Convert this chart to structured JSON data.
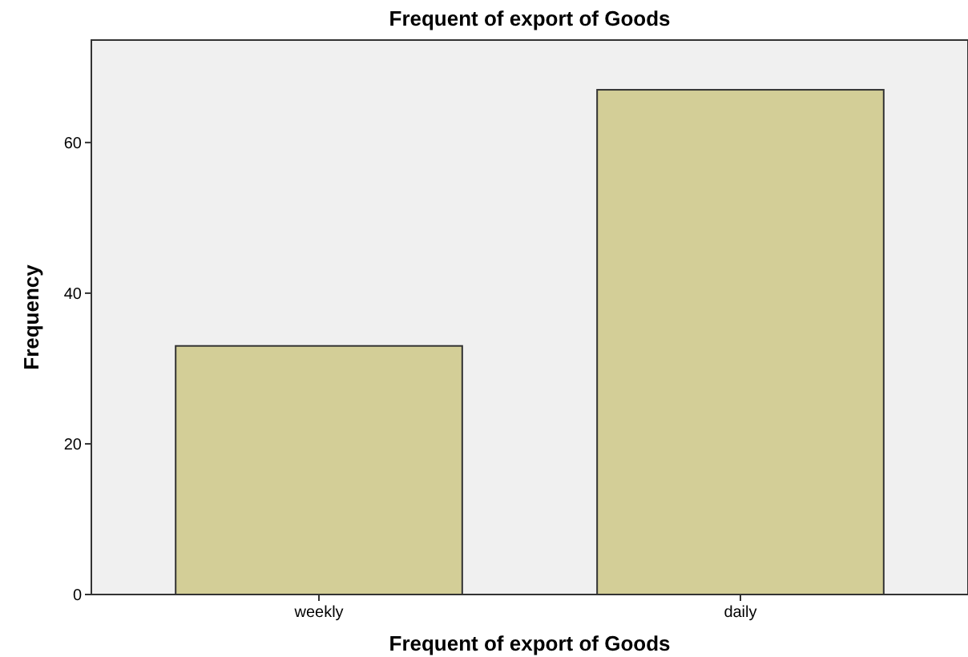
{
  "chart_data": {
    "type": "bar",
    "title": "Frequent of export of Goods",
    "xlabel": "Frequent of export of Goods",
    "ylabel": "Frequency",
    "categories": [
      "weekly",
      "daily"
    ],
    "values": [
      33,
      67
    ],
    "color": "#d3ce97",
    "ylim": [
      0,
      73.6
    ],
    "yticks": [
      0,
      20,
      40,
      60
    ],
    "grid": false
  }
}
